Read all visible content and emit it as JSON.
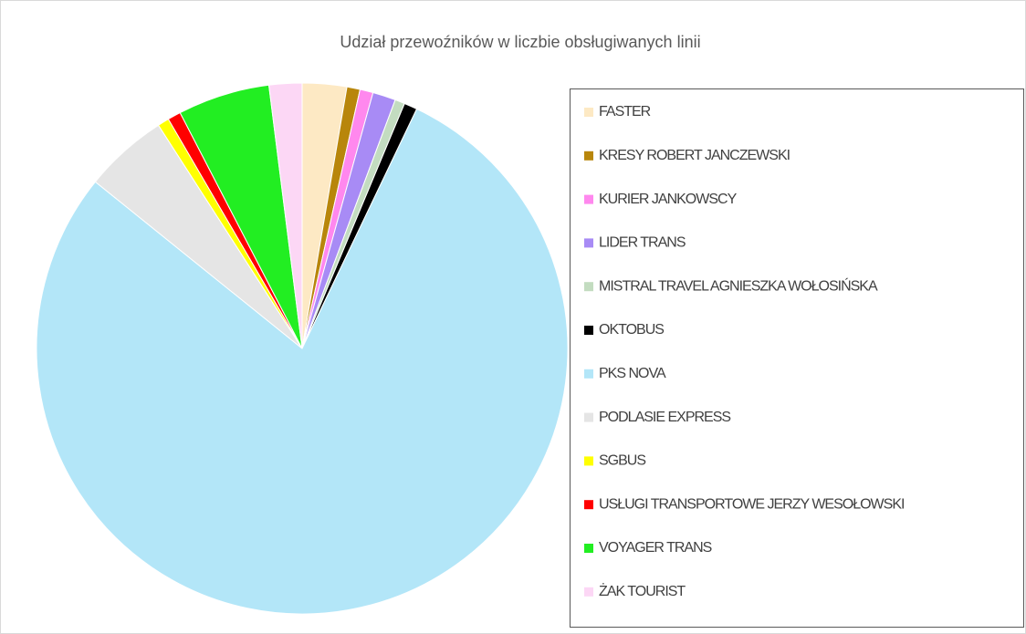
{
  "chart_data": {
    "type": "pie",
    "title": "Udział przewoźników w liczbie obsługiwanych linii",
    "categories": [
      "FASTER",
      "KRESY ROBERT JANCZEWSKI",
      "KURIER JANKOWSCY",
      "LIDER TRANS",
      "MISTRAL TRAVEL AGNIESZKA WOŁOSIŃSKA",
      "OKTOBUS",
      "PKS NOVA",
      "PODLASIE EXPRESS",
      "SGBUS",
      "USŁUGI TRANSPORTOWE JERZY WESOŁOWSKI",
      "VOYAGER TRANS",
      "ŻAK TOURIST"
    ],
    "values": [
      2.7,
      0.8,
      0.8,
      1.4,
      0.6,
      0.8,
      78.7,
      5.1,
      0.7,
      0.8,
      5.6,
      2.0
    ],
    "colors": [
      "#fde9c4",
      "#b8860b",
      "#ff88ee",
      "#a88bf5",
      "#c3dcc0",
      "#000000",
      "#b3e6f8",
      "#e5e5e5",
      "#ffff00",
      "#ff0000",
      "#22ee22",
      "#fcd7f5"
    ],
    "legend": "right"
  }
}
